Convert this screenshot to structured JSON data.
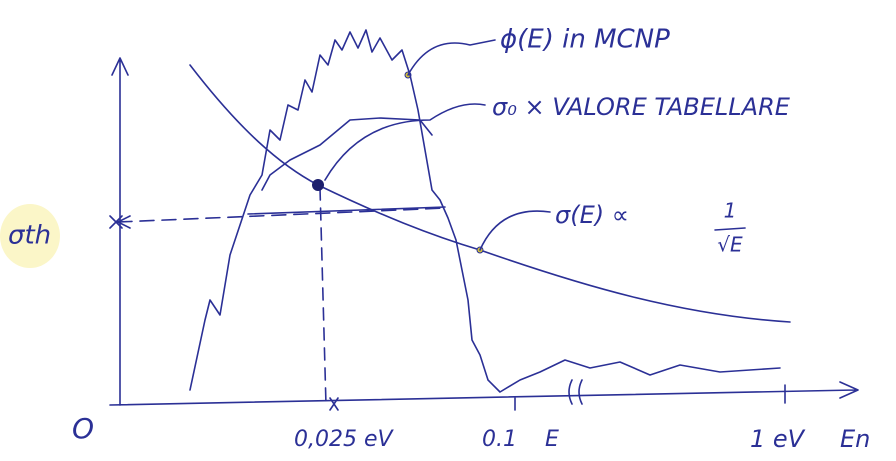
{
  "annotations": {
    "flux": "ϕ(E) in MCNP",
    "sigma0": "σ₀ × VALORE TABELLARE",
    "sigma_e": "σ(E) ∝",
    "fraction_num": "1",
    "fraction_den": "√E"
  },
  "axes": {
    "y_label": "σth",
    "origin": "O",
    "x_thermal": "0,025 eV",
    "x_01": "0.1",
    "x_e": "E",
    "x_1ev": "1 eV",
    "x_label": "En"
  }
}
